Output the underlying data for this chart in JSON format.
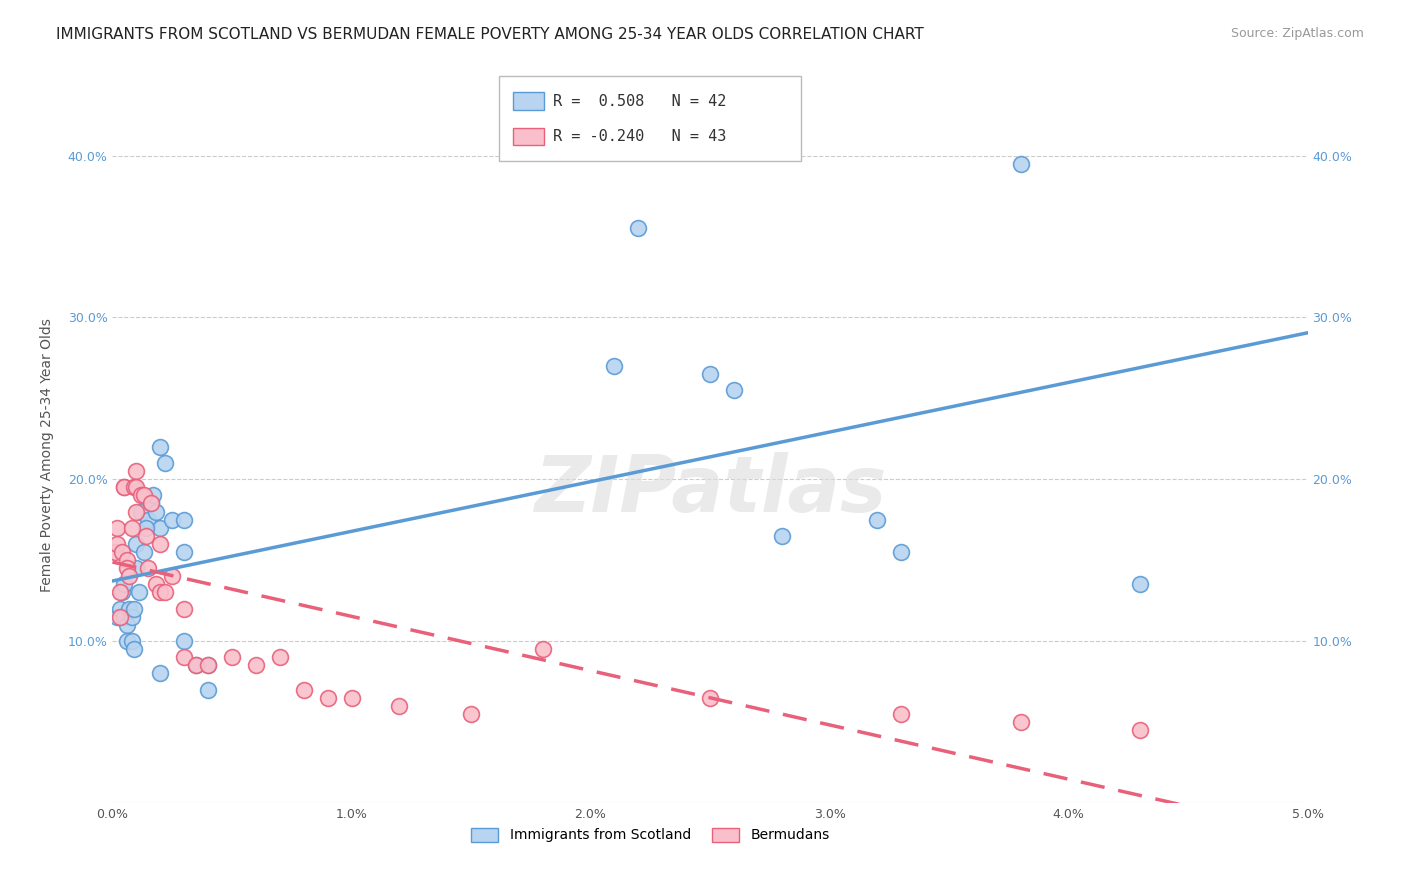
{
  "title": "IMMIGRANTS FROM SCOTLAND VS BERMUDAN FEMALE POVERTY AMONG 25-34 YEAR OLDS CORRELATION CHART",
  "source": "Source: ZipAtlas.com",
  "ylabel": "Female Poverty Among 25-34 Year Olds",
  "watermark": "ZIPatlas",
  "legend_label1": "Immigrants from Scotland",
  "legend_label2": "Bermudans",
  "xlim": [
    0.0,
    0.05
  ],
  "ylim": [
    0.0,
    0.43
  ],
  "yticks": [
    0.1,
    0.2,
    0.3,
    0.4
  ],
  "ytick_labels": [
    "10.0%",
    "20.0%",
    "30.0%",
    "40.0%"
  ],
  "xticks": [
    0.0,
    0.01,
    0.02,
    0.03,
    0.04,
    0.05
  ],
  "xtick_labels": [
    "0.0%",
    "1.0%",
    "2.0%",
    "3.0%",
    "4.0%",
    "5.0%"
  ],
  "blue_fill": "#B8D4F0",
  "blue_edge": "#5B9BD5",
  "pink_fill": "#F9C0CB",
  "pink_edge": "#E8607A",
  "blue_line": "#5B9BD5",
  "pink_line": "#E8607A",
  "background_color": "#FFFFFF",
  "grid_color": "#CCCCCC",
  "scotland_x": [
    0.0002,
    0.0003,
    0.0004,
    0.0005,
    0.0005,
    0.0006,
    0.0006,
    0.0007,
    0.0008,
    0.0009,
    0.001,
    0.001,
    0.0011,
    0.0012,
    0.0013,
    0.0015,
    0.0016,
    0.0017,
    0.0018,
    0.002,
    0.002,
    0.0022,
    0.0025,
    0.003,
    0.003,
    0.0035,
    0.004,
    0.004,
    0.021,
    0.022,
    0.025,
    0.026,
    0.028,
    0.032,
    0.033,
    0.038,
    0.043,
    0.0008,
    0.0009,
    0.0014,
    0.002,
    0.003
  ],
  "scotland_y": [
    0.115,
    0.12,
    0.13,
    0.135,
    0.115,
    0.11,
    0.1,
    0.12,
    0.115,
    0.12,
    0.16,
    0.145,
    0.13,
    0.18,
    0.155,
    0.175,
    0.185,
    0.19,
    0.18,
    0.22,
    0.17,
    0.21,
    0.175,
    0.175,
    0.155,
    0.085,
    0.085,
    0.07,
    0.27,
    0.355,
    0.265,
    0.255,
    0.165,
    0.175,
    0.155,
    0.395,
    0.135,
    0.1,
    0.095,
    0.17,
    0.08,
    0.1
  ],
  "bermuda_x": [
    0.0001,
    0.0002,
    0.0002,
    0.0003,
    0.0003,
    0.0004,
    0.0005,
    0.0005,
    0.0006,
    0.0006,
    0.0007,
    0.0008,
    0.0009,
    0.001,
    0.001,
    0.001,
    0.0012,
    0.0013,
    0.0014,
    0.0015,
    0.0016,
    0.0018,
    0.002,
    0.002,
    0.0022,
    0.0025,
    0.003,
    0.003,
    0.0035,
    0.004,
    0.005,
    0.006,
    0.007,
    0.008,
    0.009,
    0.01,
    0.012,
    0.015,
    0.018,
    0.025,
    0.033,
    0.038,
    0.043
  ],
  "bermuda_y": [
    0.155,
    0.17,
    0.16,
    0.115,
    0.13,
    0.155,
    0.195,
    0.195,
    0.15,
    0.145,
    0.14,
    0.17,
    0.195,
    0.205,
    0.195,
    0.18,
    0.19,
    0.19,
    0.165,
    0.145,
    0.185,
    0.135,
    0.16,
    0.13,
    0.13,
    0.14,
    0.12,
    0.09,
    0.085,
    0.085,
    0.09,
    0.085,
    0.09,
    0.07,
    0.065,
    0.065,
    0.06,
    0.055,
    0.095,
    0.065,
    0.055,
    0.05,
    0.045
  ],
  "title_fontsize": 11,
  "source_fontsize": 9,
  "axis_fontsize": 9,
  "label_fontsize": 10,
  "legend_fontsize": 11
}
